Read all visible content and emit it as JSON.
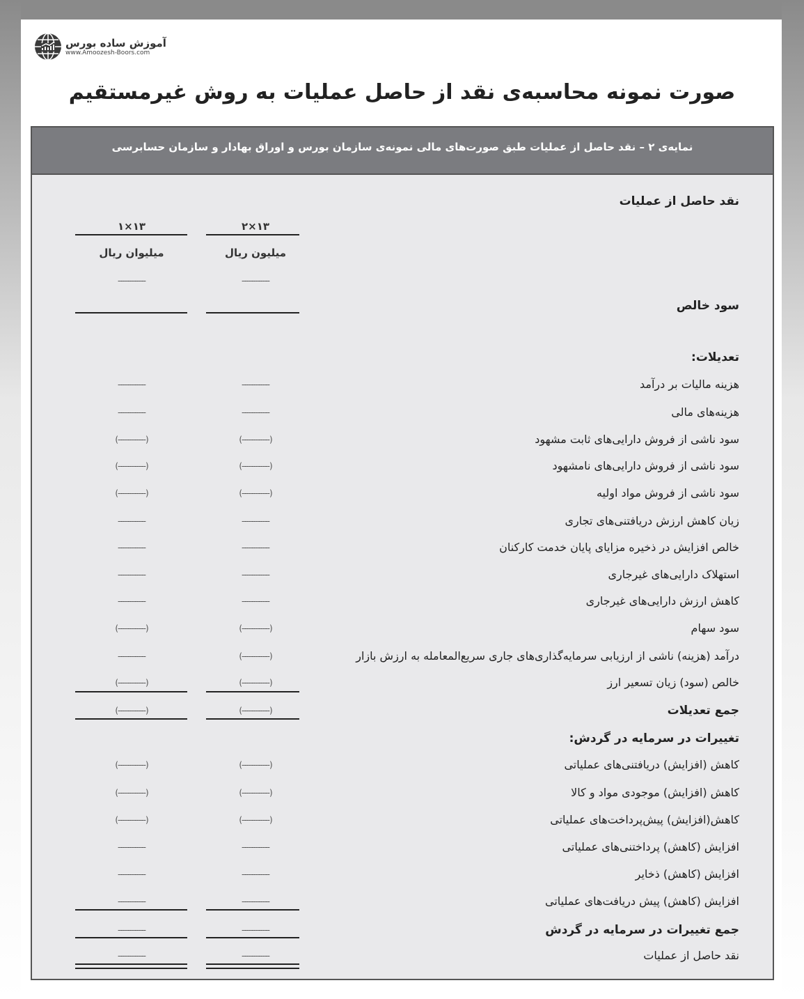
{
  "logo": {
    "name_fa": "آموزش ساده بورس",
    "url": "www.Amoozesh-Boors.com"
  },
  "title": "صورت نمونه محاسبه‌ی نقد از حاصل عملیات به روش غیرمستقیم",
  "table": {
    "caption": "نمایه‌ی ۲ – نقد حاصل از عملیات طبق صورت‌های مالی نمونه‌ی سازمان بورس و اوراق بهادار و سازمان حسابرسی",
    "heading": "نقد حاصل از عملیات",
    "columns": [
      {
        "year": "۱۳×۲",
        "unit": "میلیون ریال"
      },
      {
        "year": "۱۳×۱",
        "unit": "میلیوان ریال"
      }
    ],
    "dash": "------------",
    "paren": "(------------)",
    "rows": [
      {
        "label": "",
        "bold": false,
        "values": [
          "dash",
          "dash"
        ]
      },
      {
        "label": "سود خالص",
        "bold": true,
        "values": [
          "",
          ""
        ],
        "line": "single"
      },
      {
        "label": "تعدیلات:",
        "bold": true,
        "values": [
          "",
          ""
        ]
      },
      {
        "label": "هزینه مالیات بر درآمد",
        "bold": false,
        "values": [
          "dash",
          "dash"
        ]
      },
      {
        "label": "هزینه‌های مالی",
        "bold": false,
        "values": [
          "dash",
          "dash"
        ]
      },
      {
        "label": "سود ناشی از فروش دارایی‌های ثابت مشهود",
        "bold": false,
        "values": [
          "paren",
          "paren"
        ]
      },
      {
        "label": "سود ناشی از فروش دارایی‌های نامشهود",
        "bold": false,
        "values": [
          "paren",
          "paren"
        ]
      },
      {
        "label": "سود ناشی از فروش مواد اولیه",
        "bold": false,
        "values": [
          "paren",
          "paren"
        ]
      },
      {
        "label": "زیان کاهش ارزش دریافتنی‌های تجاری",
        "bold": false,
        "values": [
          "dash",
          "dash"
        ]
      },
      {
        "label": "خالص افزایش در ذخیره مزایای پایان خدمت کارکنان",
        "bold": false,
        "values": [
          "dash",
          "dash"
        ]
      },
      {
        "label": "استهلاک دارایی‌های غیرجاری",
        "bold": false,
        "values": [
          "dash",
          "dash"
        ]
      },
      {
        "label": "کاهش ارزش دارایی‌های غیرجاری",
        "bold": false,
        "values": [
          "dash",
          "dash"
        ]
      },
      {
        "label": "سود سهام",
        "bold": false,
        "values": [
          "paren",
          "paren"
        ]
      },
      {
        "label": "درآمد (هزینه) ناشی از ارزیابی سرمایه‌گذاری‌های جاری سریع‌المعامله به ارزش بازار",
        "bold": false,
        "values": [
          "paren",
          "dash"
        ]
      },
      {
        "label": "خالص (سود) زیان تسعیر ارز",
        "bold": false,
        "values": [
          "paren",
          "paren"
        ],
        "line": "single"
      },
      {
        "label": "جمع تعدیلات",
        "bold": true,
        "values": [
          "paren",
          "paren"
        ],
        "line": "single"
      },
      {
        "label": "تغییرات در سرمایه در گردش:",
        "bold": true,
        "values": [
          "",
          ""
        ]
      },
      {
        "label": "کاهش (افزایش) دریافتنی‌های عملیاتی",
        "bold": false,
        "values": [
          "paren",
          "paren"
        ]
      },
      {
        "label": "کاهش (افزایش) موجودی مواد و کالا",
        "bold": false,
        "values": [
          "paren",
          "paren"
        ]
      },
      {
        "label": "کاهش(افزایش) پیش‌پرداخت‌های عملیاتی",
        "bold": false,
        "values": [
          "paren",
          "paren"
        ]
      },
      {
        "label": "افزایش (کاهش) پرداختنی‌های عملیاتی",
        "bold": false,
        "values": [
          "dash",
          "dash"
        ]
      },
      {
        "label": "افزایش (کاهش) ذخایر",
        "bold": false,
        "values": [
          "dash",
          "dash"
        ]
      },
      {
        "label": "افزایش (کاهش) پیش دریافت‌های عملیاتی",
        "bold": false,
        "values": [
          "dash",
          "dash"
        ],
        "line": "single"
      },
      {
        "label": "جمع تغییرات در سرمایه در گردش",
        "bold": true,
        "values": [
          "dash",
          "dash"
        ],
        "line": "single"
      },
      {
        "label": "نقد حاصل از عملیات",
        "bold": false,
        "values": [
          "dash",
          "dash"
        ],
        "line": "double"
      }
    ]
  }
}
